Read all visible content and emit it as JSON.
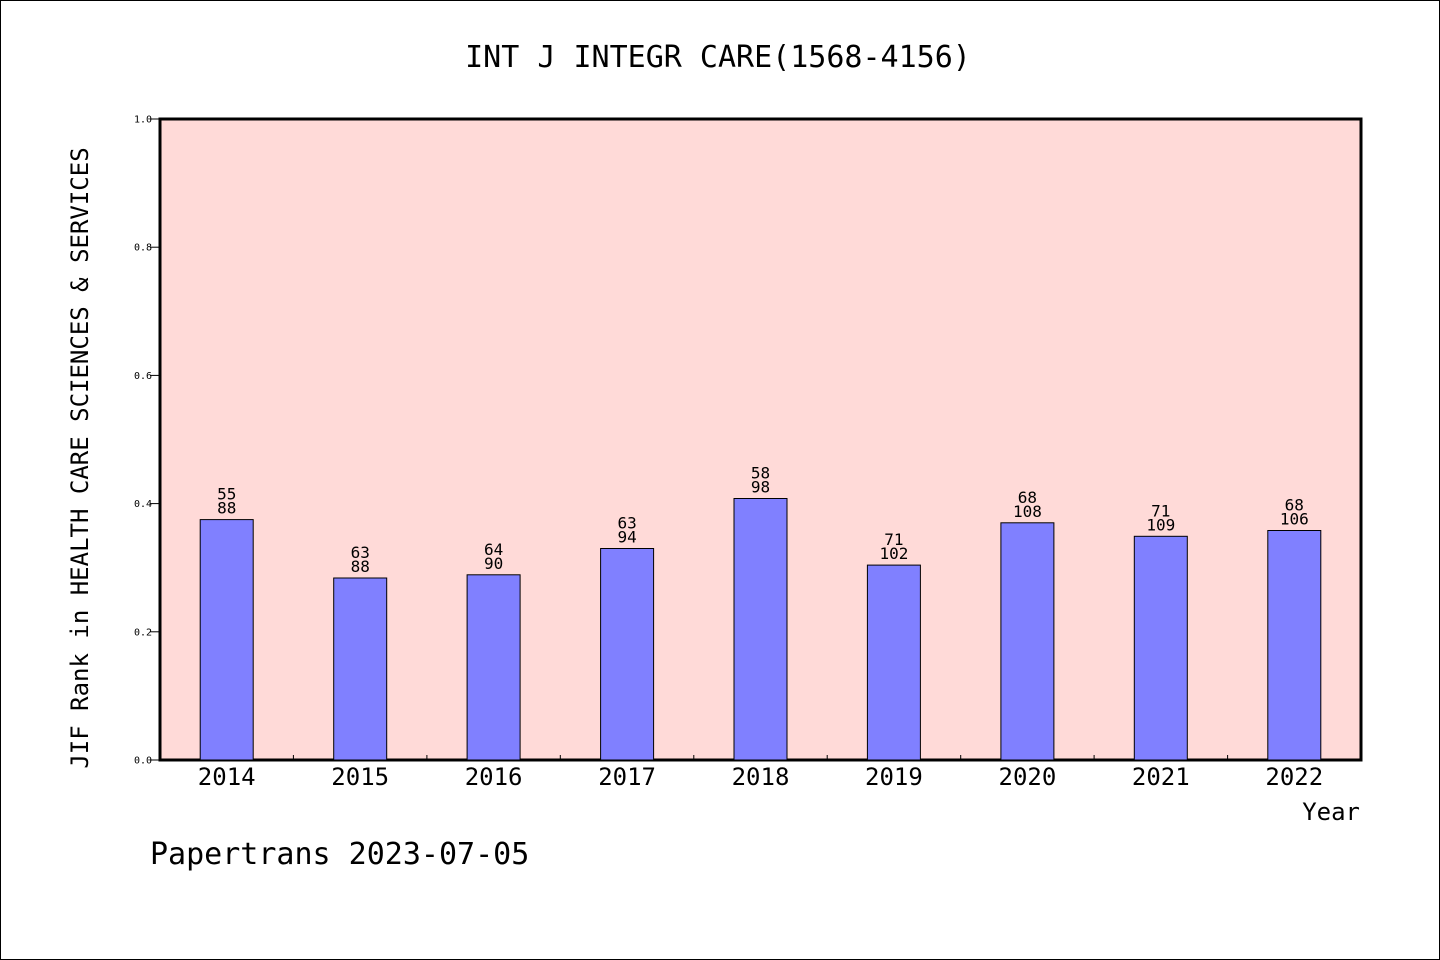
{
  "chart_data": {
    "type": "bar",
    "title": "INT J INTEGR CARE(1568-4156)",
    "xlabel": "Year",
    "ylabel": "JIF Rank in HEALTH CARE SCIENCES & SERVICES",
    "ylim": [
      0.0,
      1.0
    ],
    "yticks": [
      "0.0",
      "0.2",
      "0.4",
      "0.6",
      "0.8",
      "1.0"
    ],
    "grid": false,
    "categories": [
      "2014",
      "2015",
      "2016",
      "2017",
      "2018",
      "2019",
      "2020",
      "2021",
      "2022"
    ],
    "values": [
      0.375,
      0.284,
      0.289,
      0.33,
      0.408,
      0.304,
      0.37,
      0.349,
      0.358
    ],
    "rank": [
      "55",
      "63",
      "64",
      "63",
      "58",
      "71",
      "68",
      "71",
      "68"
    ],
    "total": [
      "88",
      "88",
      "90",
      "94",
      "98",
      "102",
      "108",
      "109",
      "106"
    ],
    "colors": {
      "bar": "#8080ff",
      "plot_background": "#ffdad8"
    }
  },
  "footer": "Papertrans 2023-07-05"
}
